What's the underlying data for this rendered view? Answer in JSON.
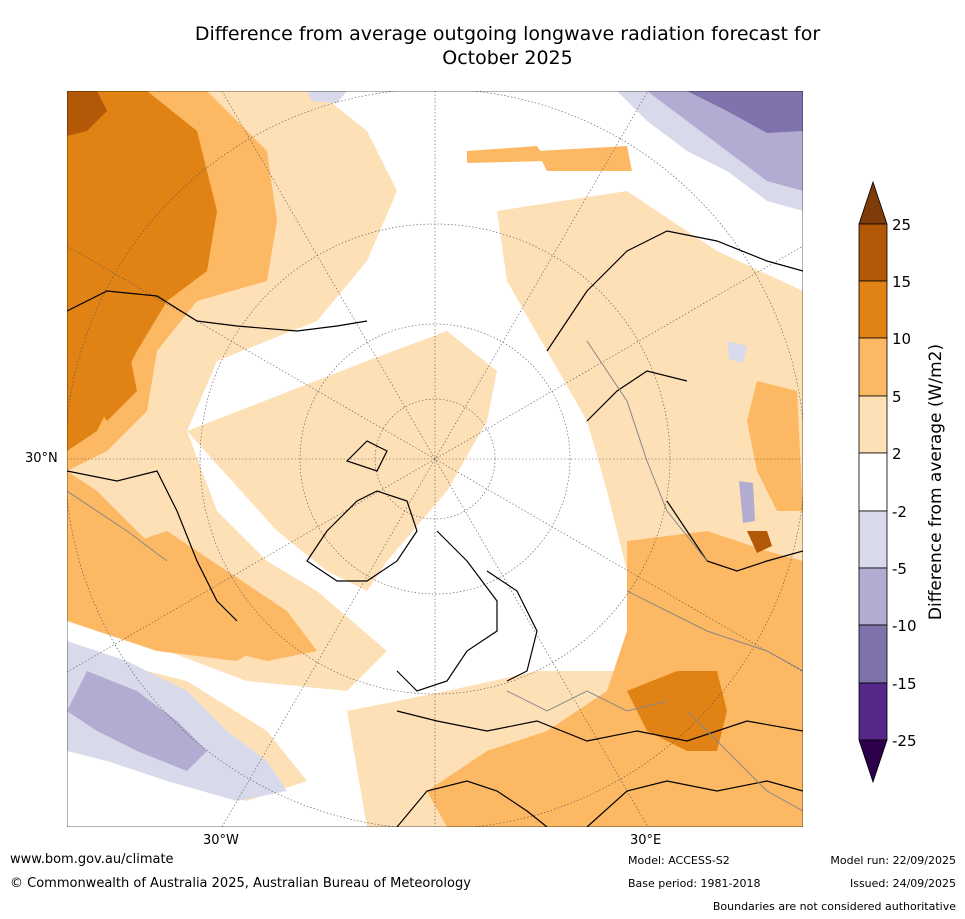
{
  "title_line1": "Difference from average outgoing longwave radiation forecast for",
  "title_line2": "October 2025",
  "axes": {
    "lat_30n": "30°N",
    "lon_30w": "30°W",
    "lon_30e": "30°E"
  },
  "colorbar": {
    "label": "Difference from average (W/m2)",
    "ticks": [
      "25",
      "15",
      "10",
      "5",
      "2",
      "-2",
      "-5",
      "-10",
      "-15",
      "-25"
    ],
    "colors": {
      "over": "#7f3b08",
      "b15_25": "#b35806",
      "b10_15": "#e08214",
      "b5_10": "#fdb863",
      "b2_5": "#fee0b6",
      "neutral": "#ffffff",
      "m5_m2": "#d8daeb",
      "m10_m5": "#b2abd2",
      "m15_m10": "#8073ac",
      "m25_m15": "#542788",
      "under": "#2d004b"
    }
  },
  "footer": {
    "url": "www.bom.gov.au/climate",
    "copyright": "© Commonwealth of Australia 2025, Australian Bureau of Meteorology",
    "model": "Model: ACCESS-S2",
    "base_period": "Base period: 1981-2018",
    "model_run": "Model run: 22/09/2025",
    "issued": "Issued: 24/09/2025",
    "boundaries": "Boundaries are not considered authoritative"
  }
}
